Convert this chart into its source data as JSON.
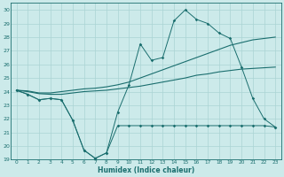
{
  "xlabel": "Humidex (Indice chaleur)",
  "bg_color": "#cceaea",
  "grid_color": "#aad4d4",
  "line_color": "#1a6e6e",
  "xlim": [
    -0.5,
    23.5
  ],
  "ylim": [
    19,
    30.5
  ],
  "xticks": [
    0,
    1,
    2,
    3,
    4,
    5,
    6,
    7,
    8,
    9,
    10,
    11,
    12,
    13,
    14,
    15,
    16,
    17,
    18,
    19,
    20,
    21,
    22,
    23
  ],
  "yticks": [
    19,
    20,
    21,
    22,
    23,
    24,
    25,
    26,
    27,
    28,
    29,
    30
  ],
  "line1_x": [
    0,
    1,
    2,
    3,
    4,
    5,
    6,
    7,
    8,
    9,
    10,
    11,
    12,
    13,
    14,
    15,
    16,
    17,
    18,
    19,
    20,
    21,
    22,
    23
  ],
  "line1_y": [
    24.1,
    23.8,
    23.4,
    23.5,
    23.4,
    21.9,
    19.7,
    19.1,
    19.5,
    21.5,
    21.5,
    21.5,
    21.5,
    21.5,
    21.5,
    21.5,
    21.5,
    21.5,
    21.5,
    21.5,
    21.5,
    21.5,
    21.5,
    21.4
  ],
  "line2_x": [
    0,
    1,
    2,
    3,
    4,
    5,
    6,
    7,
    8,
    9,
    10,
    11,
    12,
    13,
    14,
    15,
    16,
    17,
    18,
    19,
    20,
    21,
    22,
    23
  ],
  "line2_y": [
    24.1,
    23.8,
    23.4,
    23.5,
    23.4,
    21.9,
    19.7,
    19.1,
    19.5,
    22.5,
    24.5,
    27.5,
    26.3,
    26.5,
    29.2,
    30.0,
    29.3,
    29.0,
    28.3,
    27.9,
    25.8,
    23.5,
    22.0,
    21.4
  ],
  "line3_x": [
    0,
    1,
    2,
    3,
    4,
    5,
    6,
    7,
    8,
    9,
    10,
    11,
    12,
    13,
    14,
    15,
    16,
    17,
    18,
    19,
    20,
    21,
    22,
    23
  ],
  "line3_y": [
    24.1,
    24.05,
    23.9,
    23.9,
    24.0,
    24.1,
    24.2,
    24.25,
    24.35,
    24.5,
    24.7,
    25.0,
    25.3,
    25.6,
    25.9,
    26.2,
    26.5,
    26.8,
    27.1,
    27.4,
    27.6,
    27.8,
    27.9,
    28.0
  ],
  "line4_x": [
    0,
    1,
    2,
    3,
    4,
    5,
    6,
    7,
    8,
    9,
    10,
    11,
    12,
    13,
    14,
    15,
    16,
    17,
    18,
    19,
    20,
    21,
    22,
    23
  ],
  "line4_y": [
    24.1,
    24.0,
    23.85,
    23.8,
    23.8,
    23.9,
    24.0,
    24.05,
    24.1,
    24.2,
    24.3,
    24.4,
    24.55,
    24.7,
    24.85,
    25.0,
    25.2,
    25.3,
    25.45,
    25.55,
    25.65,
    25.7,
    25.75,
    25.8
  ]
}
